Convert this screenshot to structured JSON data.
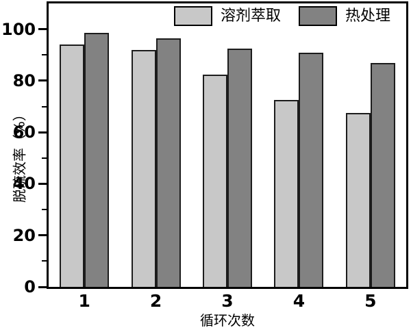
{
  "chart_data": {
    "type": "bar",
    "title": "",
    "categories": [
      "1",
      "2",
      "3",
      "4",
      "5"
    ],
    "series": [
      {
        "name": "溶剂萃取",
        "color": "#c8c8c8",
        "values": [
          94,
          92,
          82.5,
          72.5,
          67.5
        ]
      },
      {
        "name": "热处理",
        "color": "#828282",
        "values": [
          98.5,
          96.5,
          92.5,
          91,
          87
        ]
      }
    ],
    "xlabel": "循环次数",
    "ylabel": "脱硫效率（%）",
    "ylim": [
      0,
      110
    ],
    "yticks_major": [
      0,
      20,
      40,
      60,
      80,
      100
    ],
    "yticks_minor": [
      10,
      30,
      50,
      70,
      90
    ],
    "grid": false,
    "legend_position": "top-inside",
    "bar_outline_color": "#1c1c1c",
    "axis_color": "#000000"
  },
  "legend": {
    "items": [
      {
        "label": "溶剂萃取"
      },
      {
        "label": "热处理"
      }
    ]
  },
  "axes": {
    "x_title": "循环次数",
    "y_title": "脱硫效率（%）"
  }
}
